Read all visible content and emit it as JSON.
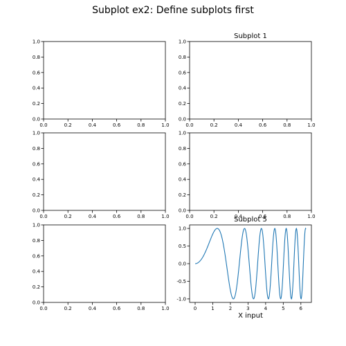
{
  "suptitle": "Subplot ex2: Define subplots first",
  "colors": {
    "axis": "#000000",
    "line": "#1f77b4",
    "background": "#ffffff"
  },
  "chart_data": [
    {
      "type": "empty",
      "subplot": 1,
      "title": "",
      "xlabel": "",
      "ylabel": "",
      "xlim": [
        0,
        1
      ],
      "ylim": [
        0,
        1
      ],
      "xticks": [
        "0.0",
        "0.2",
        "0.4",
        "0.6",
        "0.8",
        "1.0"
      ],
      "yticks": [
        "0.0",
        "0.2",
        "0.4",
        "0.6",
        "0.8",
        "1.0"
      ]
    },
    {
      "type": "empty",
      "subplot": 2,
      "title": "Subplot 1",
      "xlabel": "",
      "ylabel": "",
      "xlim": [
        0,
        1
      ],
      "ylim": [
        0,
        1
      ],
      "xticks": [
        "0.0",
        "0.2",
        "0.4",
        "0.6",
        "0.8",
        "1.0"
      ],
      "yticks": [
        "0.0",
        "0.2",
        "0.4",
        "0.6",
        "0.8",
        "1.0"
      ]
    },
    {
      "type": "empty",
      "subplot": 3,
      "title": "",
      "xlabel": "",
      "ylabel": "",
      "xlim": [
        0,
        1
      ],
      "ylim": [
        0,
        1
      ],
      "xticks": [
        "0.0",
        "0.2",
        "0.4",
        "0.6",
        "0.8",
        "1.0"
      ],
      "yticks": [
        "0.0",
        "0.2",
        "0.4",
        "0.6",
        "0.8",
        "1.0"
      ]
    },
    {
      "type": "empty",
      "subplot": 4,
      "title": "",
      "xlabel": "",
      "ylabel": "",
      "xlim": [
        0,
        1
      ],
      "ylim": [
        0,
        1
      ],
      "xticks": [
        "0.0",
        "0.2",
        "0.4",
        "0.6",
        "0.8",
        "1.0"
      ],
      "yticks": [
        "0.0",
        "0.2",
        "0.4",
        "0.6",
        "0.8",
        "1.0"
      ]
    },
    {
      "type": "empty",
      "subplot": 5,
      "title": "",
      "xlabel": "",
      "ylabel": "",
      "xlim": [
        0,
        1
      ],
      "ylim": [
        0,
        1
      ],
      "xticks": [
        "0.0",
        "0.2",
        "0.4",
        "0.6",
        "0.8",
        "1.0"
      ],
      "yticks": [
        "0.0",
        "0.2",
        "0.4",
        "0.6",
        "0.8",
        "1.0"
      ]
    },
    {
      "type": "line",
      "subplot": 6,
      "title": "Subplot 5",
      "xlabel": "X input",
      "ylabel": "",
      "xlim": [
        -0.314,
        6.597
      ],
      "ylim": [
        -1.1,
        1.1
      ],
      "xticks": [
        "0",
        "1",
        "2",
        "3",
        "4",
        "5",
        "6"
      ],
      "yticks": [
        "-1.0",
        "-0.5",
        "0.0",
        "0.5",
        "1.0"
      ],
      "series": [
        {
          "function": "sin(x^2)",
          "x_range": [
            0,
            6.283
          ],
          "points": 400
        }
      ]
    }
  ]
}
